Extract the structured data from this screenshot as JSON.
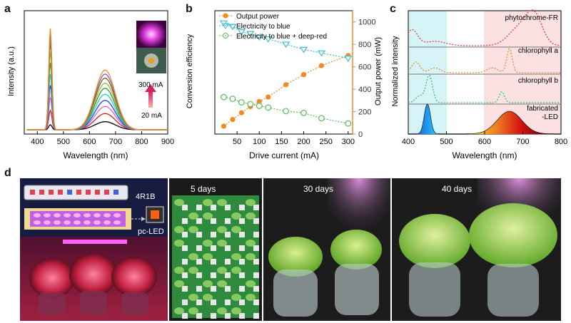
{
  "panel_letters": {
    "a": "a",
    "b": "b",
    "c": "c",
    "d": "d"
  },
  "panel_a": {
    "ylabel": "Intensity (a.u.)",
    "xlabel": "Wavelength (nm)",
    "xticks": [
      "400",
      "500",
      "600",
      "700",
      "800",
      "900"
    ],
    "current_high": "300 mA",
    "current_low": "20 mA"
  },
  "panel_b": {
    "legend": [
      "Output power",
      "Electricity to blue",
      "Electricity to blue + deep-red"
    ],
    "ylabel_left": "Conversion efficiency",
    "ylabel_right": "Output power (mW)",
    "xlabel": "Drive current (mA)"
  },
  "panel_c": {
    "ylabel": "Normalized intensity",
    "xlabel": "Wavelength (nm)",
    "xticks": [
      "400",
      "500",
      "600",
      "700",
      "800"
    ],
    "curve_labels": [
      "phytochrome-FR",
      "chlorophyll a",
      "chlorophyll b",
      "fabricated\n-LED"
    ]
  },
  "panel_d": {
    "label_4r1b": "4R1B",
    "label_pcled": "pc-LED",
    "days": [
      "5 days",
      "30 days",
      "40 days"
    ]
  },
  "colors": {
    "orange": "#f08a24",
    "cyan": "#3cbcd0",
    "green": "#5cb85c",
    "photo_bg": "#1a1a1a"
  },
  "chart_data": [
    {
      "type": "line",
      "title": "",
      "xlabel": "Wavelength (nm)",
      "ylabel": "Intensity (a.u.)",
      "xlim": [
        350,
        900
      ],
      "series": [
        {
          "values": [
            [
              450,
              0.05
            ],
            [
              660,
              0.08
            ]
          ]
        },
        {
          "values": [
            [
              450,
              0.19
            ],
            [
              660,
              0.16
            ]
          ]
        },
        {
          "values": [
            [
              450,
              0.32
            ],
            [
              660,
              0.23
            ]
          ]
        },
        {
          "values": [
            [
              450,
              0.44
            ],
            [
              660,
              0.29
            ]
          ]
        },
        {
          "values": [
            [
              450,
              0.55
            ],
            [
              660,
              0.35
            ]
          ]
        },
        {
          "values": [
            [
              450,
              0.66
            ],
            [
              660,
              0.41
            ]
          ]
        },
        {
          "values": [
            [
              450,
              0.77
            ],
            [
              660,
              0.46
            ]
          ]
        },
        {
          "values": [
            [
              450,
              0.86
            ],
            [
              660,
              0.51
            ]
          ]
        },
        {
          "values": [
            [
              450,
              0.93
            ],
            [
              660,
              0.55
            ]
          ]
        },
        {
          "values": [
            [
              450,
              1.0
            ],
            [
              660,
              0.59
            ]
          ]
        }
      ]
    },
    {
      "type": "line",
      "title": "",
      "xlabel": "Drive current (mA)",
      "ylabel": "Conversion efficiency",
      "ylabel_right": "Output power (mW)",
      "xticks": [
        50,
        100,
        150,
        200,
        250,
        300
      ],
      "yticks_right": [
        0,
        200,
        400,
        600,
        800,
        1000
      ],
      "ylim_right": [
        0,
        1100
      ],
      "series": [
        {
          "name": "Output power",
          "axis": "right",
          "x": [
            20,
            40,
            60,
            80,
            100,
            120,
            160,
            200,
            240,
            300
          ],
          "y": [
            70,
            130,
            190,
            245,
            290,
            330,
            440,
            530,
            610,
            700
          ]
        },
        {
          "name": "Electricity to blue",
          "axis": "left",
          "x": [
            20,
            40,
            60,
            80,
            100,
            120,
            160,
            200,
            240,
            300
          ],
          "y": [
            0.78,
            0.76,
            0.73,
            0.72,
            0.7,
            0.69,
            0.66,
            0.63,
            0.61,
            0.58
          ]
        },
        {
          "name": "Electricity to blue + deep-red",
          "axis": "left",
          "x": [
            20,
            40,
            60,
            80,
            100,
            120,
            160,
            200,
            240,
            300
          ],
          "y": [
            0.36,
            0.35,
            0.33,
            0.32,
            0.31,
            0.3,
            0.28,
            0.27,
            0.24,
            0.21
          ]
        }
      ]
    },
    {
      "type": "line",
      "title": "",
      "xlabel": "Wavelength (nm)",
      "ylabel": "Normalized intensity",
      "xlim": [
        400,
        800
      ],
      "series": [
        {
          "name": "phytochrome-FR"
        },
        {
          "name": "chlorophyll a"
        },
        {
          "name": "chlorophyll b"
        },
        {
          "name": "fabricated -LED"
        }
      ]
    }
  ]
}
